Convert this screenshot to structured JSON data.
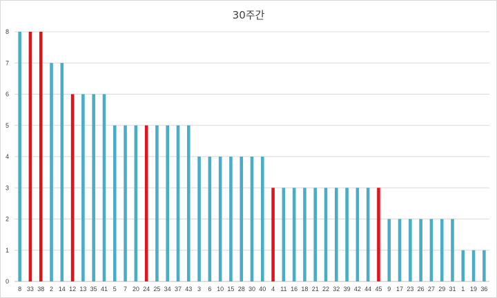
{
  "chart_data": {
    "type": "bar",
    "title": "30주간",
    "xlabel": "",
    "ylabel": "",
    "ylim": [
      0,
      8
    ],
    "y_ticks": [
      0,
      1,
      2,
      3,
      4,
      5,
      6,
      7,
      8
    ],
    "grid": true,
    "legend": "none",
    "categories": [
      "8",
      "33",
      "38",
      "2",
      "14",
      "12",
      "13",
      "35",
      "41",
      "5",
      "7",
      "20",
      "24",
      "25",
      "34",
      "37",
      "43",
      "3",
      "6",
      "10",
      "15",
      "28",
      "30",
      "40",
      "4",
      "11",
      "16",
      "18",
      "21",
      "22",
      "32",
      "39",
      "42",
      "44",
      "45",
      "9",
      "17",
      "23",
      "26",
      "27",
      "29",
      "31",
      "1",
      "19",
      "36"
    ],
    "values": [
      8,
      8,
      8,
      7,
      7,
      6,
      6,
      6,
      6,
      5,
      5,
      5,
      5,
      5,
      5,
      5,
      5,
      4,
      4,
      4,
      4,
      4,
      4,
      4,
      3,
      3,
      3,
      3,
      3,
      3,
      3,
      3,
      3,
      3,
      3,
      2,
      2,
      2,
      2,
      2,
      2,
      2,
      1,
      1,
      1
    ],
    "highlighted": [
      "33",
      "38",
      "12",
      "24",
      "4",
      "45"
    ],
    "colors": {
      "default": "#4bacc6",
      "highlight": "#e0141b"
    }
  }
}
